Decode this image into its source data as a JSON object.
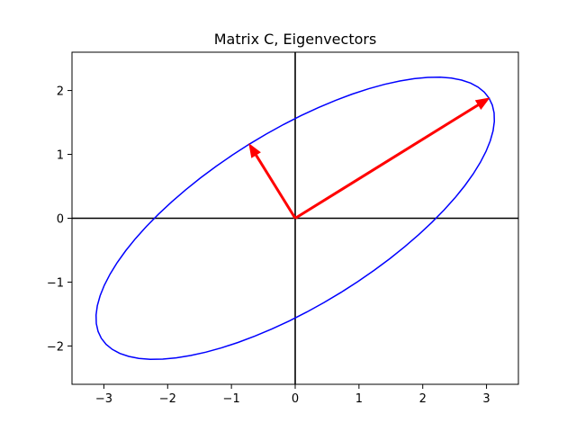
{
  "chart_data": {
    "type": "line",
    "title": "Matrix C, Eigenvectors",
    "xlabel": "",
    "ylabel": "",
    "xlim": [
      -3.5,
      3.5
    ],
    "ylim": [
      -2.6,
      2.6
    ],
    "x_ticks": [
      -3,
      -2,
      -1,
      0,
      1,
      2,
      3
    ],
    "y_ticks": [
      -2,
      -1,
      0,
      1,
      2
    ],
    "x_tick_labels": [
      "−3",
      "−2",
      "−1",
      "0",
      "1",
      "2",
      "3"
    ],
    "y_tick_labels": [
      "−2",
      "−1",
      "0",
      "1",
      "2"
    ],
    "grid": false,
    "axes_lines": [
      {
        "orientation": "horizontal",
        "value": 0,
        "color": "#000000"
      },
      {
        "orientation": "vertical",
        "value": 0,
        "color": "#000000"
      }
    ],
    "ellipse": {
      "color": "#0000ff",
      "center": [
        0,
        0
      ],
      "major_vector": [
        3.04,
        1.88
      ],
      "minor_vector": [
        -0.72,
        1.16
      ]
    },
    "vectors": [
      {
        "from": [
          0,
          0
        ],
        "to": [
          3.04,
          1.88
        ],
        "color": "#ff0000"
      },
      {
        "from": [
          0,
          0
        ],
        "to": [
          -0.72,
          1.16
        ],
        "color": "#ff0000"
      }
    ]
  }
}
